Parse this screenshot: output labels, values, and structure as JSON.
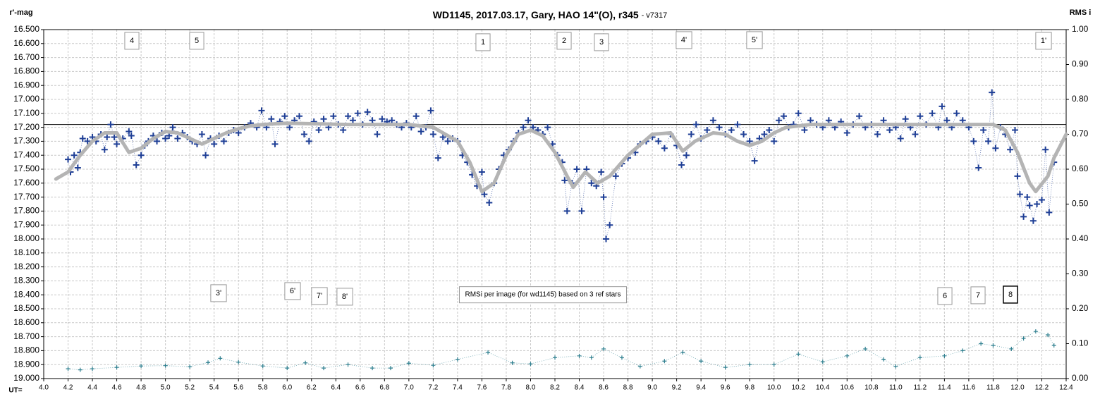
{
  "chart_data": {
    "type": "scatter",
    "title": "WD1145, 2017.03.17,  Gary, HAO 14\"(O), r345",
    "subtitle": "- v7317",
    "ylabel": "r'-mag",
    "y2label": "RMS i",
    "xlabel": "UT=",
    "xlim": [
      4.0,
      12.4
    ],
    "ylim": [
      19.0,
      16.5
    ],
    "y2lim": [
      0.0,
      1.0
    ],
    "grid": true,
    "reference_line": 17.18,
    "xticks": [
      {
        "value": 4.0,
        "label": "4.0"
      },
      {
        "value": 4.2,
        "label": "4.2"
      },
      {
        "value": 4.4,
        "label": "4.4"
      },
      {
        "value": 4.6,
        "label": "4.6"
      },
      {
        "value": 4.8,
        "label": "4.8"
      },
      {
        "value": 5.0,
        "label": "5.0"
      },
      {
        "value": 5.2,
        "label": "5.2"
      },
      {
        "value": 5.4,
        "label": "5.4"
      },
      {
        "value": 5.6,
        "label": "5.6"
      },
      {
        "value": 5.8,
        "label": "5.8"
      },
      {
        "value": 6.0,
        "label": "6.0"
      },
      {
        "value": 6.2,
        "label": "6.2"
      },
      {
        "value": 6.4,
        "label": "6.4"
      },
      {
        "value": 6.6,
        "label": "6.6"
      },
      {
        "value": 6.8,
        "label": "6.8"
      },
      {
        "value": 7.0,
        "label": "7.0"
      },
      {
        "value": 7.2,
        "label": "7.2"
      },
      {
        "value": 7.4,
        "label": "7.4"
      },
      {
        "value": 7.6,
        "label": "7.6"
      },
      {
        "value": 7.8,
        "label": "7.8"
      },
      {
        "value": 8.0,
        "label": "8.0"
      },
      {
        "value": 8.2,
        "label": "8.2"
      },
      {
        "value": 8.4,
        "label": "8.4"
      },
      {
        "value": 8.6,
        "label": "8.6"
      },
      {
        "value": 8.8,
        "label": "8.8"
      },
      {
        "value": 9.0,
        "label": "9.0"
      },
      {
        "value": 9.2,
        "label": "9.2"
      },
      {
        "value": 9.4,
        "label": "9.4"
      },
      {
        "value": 9.6,
        "label": "9.6"
      },
      {
        "value": 9.8,
        "label": "9.8"
      },
      {
        "value": 10.0,
        "label": "10.0"
      },
      {
        "value": 10.2,
        "label": "10.2"
      },
      {
        "value": 10.4,
        "label": "10.4"
      },
      {
        "value": 10.6,
        "label": "10.6"
      },
      {
        "value": 10.8,
        "label": "10.8"
      },
      {
        "value": 11.0,
        "label": "11.0"
      },
      {
        "value": 11.2,
        "label": "11.2"
      },
      {
        "value": 11.4,
        "label": "11.4"
      },
      {
        "value": 11.6,
        "label": "11.6"
      },
      {
        "value": 11.8,
        "label": "11.8"
      },
      {
        "value": 12.0,
        "label": "12.0"
      },
      {
        "value": 12.2,
        "label": "12.2"
      },
      {
        "value": 12.4,
        "label": "12.4"
      }
    ],
    "yticks": [
      {
        "value": 16.5,
        "label": "16.500"
      },
      {
        "value": 16.6,
        "label": "16.600"
      },
      {
        "value": 16.7,
        "label": "16.700"
      },
      {
        "value": 16.8,
        "label": "16.800"
      },
      {
        "value": 16.9,
        "label": "16.900"
      },
      {
        "value": 17.0,
        "label": "17.000"
      },
      {
        "value": 17.1,
        "label": "17.100"
      },
      {
        "value": 17.2,
        "label": "17.200"
      },
      {
        "value": 17.3,
        "label": "17.300"
      },
      {
        "value": 17.4,
        "label": "17.400"
      },
      {
        "value": 17.5,
        "label": "17.500"
      },
      {
        "value": 17.6,
        "label": "17.600"
      },
      {
        "value": 17.7,
        "label": "17.700"
      },
      {
        "value": 17.8,
        "label": "17.800"
      },
      {
        "value": 17.9,
        "label": "17.900"
      },
      {
        "value": 18.0,
        "label": "18.000"
      },
      {
        "value": 18.1,
        "label": "18.100"
      },
      {
        "value": 18.2,
        "label": "18.200"
      },
      {
        "value": 18.3,
        "label": "18.300"
      },
      {
        "value": 18.4,
        "label": "18.400"
      },
      {
        "value": 18.5,
        "label": "18.500"
      },
      {
        "value": 18.6,
        "label": "18.600"
      },
      {
        "value": 18.7,
        "label": "18.700"
      },
      {
        "value": 18.8,
        "label": "18.800"
      },
      {
        "value": 18.9,
        "label": "18.900"
      },
      {
        "value": 19.0,
        "label": "19.000"
      }
    ],
    "y2ticks": [
      {
        "value": 1.0,
        "label": "1.00"
      },
      {
        "value": 0.9,
        "label": "0.90"
      },
      {
        "value": 0.8,
        "label": "0.80"
      },
      {
        "value": 0.7,
        "label": "0.70"
      },
      {
        "value": 0.6,
        "label": "0.60"
      },
      {
        "value": 0.5,
        "label": "0.50"
      },
      {
        "value": 0.4,
        "label": "0.40"
      },
      {
        "value": 0.3,
        "label": "0.30"
      },
      {
        "value": 0.2,
        "label": "0.20"
      },
      {
        "value": 0.1,
        "label": "0.10"
      },
      {
        "value": 0.0,
        "label": "0.00"
      }
    ],
    "series": [
      {
        "color": "#1f3f96",
        "marker": "plus",
        "x": [
          4.2,
          4.22,
          4.25,
          4.28,
          4.3,
          4.32,
          4.36,
          4.4,
          4.43,
          4.47,
          4.5,
          4.52,
          4.55,
          4.58,
          4.6,
          4.65,
          4.7,
          4.72,
          4.76,
          4.8,
          4.83,
          4.86,
          4.9,
          4.93,
          4.97,
          5.0,
          5.03,
          5.06,
          5.1,
          5.14,
          5.18,
          5.22,
          5.26,
          5.3,
          5.33,
          5.37,
          5.4,
          5.44,
          5.48,
          5.52,
          5.56,
          5.6,
          5.65,
          5.7,
          5.75,
          5.79,
          5.83,
          5.87,
          5.9,
          5.94,
          5.98,
          6.02,
          6.06,
          6.1,
          6.14,
          6.18,
          6.22,
          6.26,
          6.3,
          6.34,
          6.38,
          6.42,
          6.46,
          6.5,
          6.54,
          6.58,
          6.62,
          6.66,
          6.7,
          6.74,
          6.78,
          6.82,
          6.86,
          6.9,
          6.94,
          6.98,
          7.02,
          7.06,
          7.1,
          7.14,
          7.18,
          7.2,
          7.24,
          7.28,
          7.32,
          7.36,
          7.4,
          7.44,
          7.48,
          7.52,
          7.56,
          7.6,
          7.62,
          7.66,
          7.7,
          7.74,
          7.78,
          7.82,
          7.86,
          7.9,
          7.94,
          7.98,
          8.02,
          8.06,
          8.1,
          8.14,
          8.18,
          8.22,
          8.26,
          8.28,
          8.3,
          8.34,
          8.38,
          8.42,
          8.46,
          8.5,
          8.54,
          8.58,
          8.6,
          8.62,
          8.65,
          8.7,
          8.75,
          8.8,
          8.86,
          8.9,
          8.95,
          9.0,
          9.05,
          9.1,
          9.15,
          9.2,
          9.24,
          9.28,
          9.32,
          9.36,
          9.4,
          9.45,
          9.5,
          9.55,
          9.6,
          9.65,
          9.7,
          9.75,
          9.8,
          9.84,
          9.88,
          9.92,
          9.96,
          10.0,
          10.04,
          10.08,
          10.12,
          10.16,
          10.2,
          10.25,
          10.3,
          10.35,
          10.4,
          10.45,
          10.5,
          10.55,
          10.6,
          10.65,
          10.7,
          10.75,
          10.8,
          10.85,
          10.9,
          10.95,
          11.0,
          11.04,
          11.08,
          11.12,
          11.16,
          11.2,
          11.25,
          11.3,
          11.35,
          11.38,
          11.42,
          11.46,
          11.5,
          11.55,
          11.6,
          11.64,
          11.68,
          11.72,
          11.76,
          11.79,
          11.82,
          11.86,
          11.9,
          11.94,
          11.98,
          12.0,
          12.02,
          12.05,
          12.08,
          12.1,
          12.13,
          12.16,
          12.2,
          12.23,
          12.26,
          12.3
        ],
        "values": [
          17.43,
          17.52,
          17.4,
          17.49,
          17.38,
          17.28,
          17.3,
          17.27,
          17.3,
          17.25,
          17.36,
          17.27,
          17.18,
          17.27,
          17.32,
          17.28,
          17.23,
          17.26,
          17.47,
          17.4,
          17.33,
          17.3,
          17.26,
          17.3,
          17.24,
          17.28,
          17.26,
          17.2,
          17.28,
          17.24,
          17.27,
          17.3,
          17.32,
          17.25,
          17.4,
          17.28,
          17.32,
          17.26,
          17.3,
          17.24,
          17.22,
          17.24,
          17.2,
          17.17,
          17.2,
          17.08,
          17.2,
          17.14,
          17.32,
          17.16,
          17.12,
          17.2,
          17.15,
          17.12,
          17.25,
          17.3,
          17.16,
          17.22,
          17.14,
          17.2,
          17.12,
          17.18,
          17.22,
          17.12,
          17.15,
          17.1,
          17.18,
          17.09,
          17.15,
          17.25,
          17.14,
          17.16,
          17.15,
          17.18,
          17.2,
          17.17,
          17.2,
          17.12,
          17.23,
          17.2,
          17.08,
          17.25,
          17.42,
          17.27,
          17.3,
          17.28,
          17.3,
          17.4,
          17.45,
          17.54,
          17.62,
          17.52,
          17.68,
          17.74,
          17.6,
          17.5,
          17.4,
          17.36,
          17.3,
          17.24,
          17.2,
          17.15,
          17.2,
          17.22,
          17.25,
          17.2,
          17.32,
          17.4,
          17.45,
          17.58,
          17.8,
          17.6,
          17.5,
          17.8,
          17.5,
          17.6,
          17.62,
          17.52,
          17.7,
          18.0,
          17.9,
          17.55,
          17.46,
          17.42,
          17.38,
          17.32,
          17.3,
          17.27,
          17.3,
          17.35,
          17.25,
          17.33,
          17.47,
          17.4,
          17.25,
          17.18,
          17.28,
          17.22,
          17.15,
          17.2,
          17.25,
          17.22,
          17.18,
          17.25,
          17.3,
          17.44,
          17.28,
          17.25,
          17.22,
          17.3,
          17.15,
          17.12,
          17.2,
          17.18,
          17.1,
          17.22,
          17.15,
          17.18,
          17.2,
          17.15,
          17.2,
          17.16,
          17.24,
          17.18,
          17.12,
          17.2,
          17.18,
          17.25,
          17.15,
          17.22,
          17.2,
          17.28,
          17.14,
          17.2,
          17.25,
          17.12,
          17.18,
          17.1,
          17.2,
          17.05,
          17.15,
          17.2,
          17.1,
          17.15,
          17.2,
          17.3,
          17.49,
          17.22,
          17.3,
          16.95,
          17.35,
          17.2,
          17.25,
          17.36,
          17.22,
          17.55,
          17.68,
          17.84,
          17.7,
          17.76,
          17.87,
          17.75,
          17.72,
          17.36,
          17.81,
          17.45
        ]
      },
      {
        "color": "#b4b4b4",
        "marker": "smooth",
        "x": [
          4.1,
          4.2,
          4.3,
          4.4,
          4.5,
          4.6,
          4.7,
          4.8,
          4.9,
          5.0,
          5.1,
          5.2,
          5.3,
          5.4,
          5.5,
          5.6,
          5.7,
          5.8,
          6.0,
          6.5,
          7.0,
          7.2,
          7.3,
          7.4,
          7.5,
          7.6,
          7.7,
          7.8,
          7.9,
          8.0,
          8.1,
          8.2,
          8.3,
          8.35,
          8.45,
          8.55,
          8.65,
          8.8,
          9.0,
          9.15,
          9.25,
          9.35,
          9.5,
          9.6,
          9.7,
          9.8,
          9.9,
          10.0,
          10.1,
          10.3,
          11.0,
          11.8,
          11.9,
          12.0,
          12.1,
          12.15,
          12.25,
          12.3,
          12.4
        ],
        "values": [
          17.57,
          17.52,
          17.4,
          17.3,
          17.24,
          17.24,
          17.38,
          17.35,
          17.28,
          17.23,
          17.24,
          17.28,
          17.32,
          17.28,
          17.24,
          17.21,
          17.19,
          17.18,
          17.17,
          17.18,
          17.18,
          17.2,
          17.25,
          17.3,
          17.45,
          17.66,
          17.6,
          17.4,
          17.25,
          17.22,
          17.26,
          17.38,
          17.55,
          17.63,
          17.52,
          17.6,
          17.55,
          17.4,
          17.25,
          17.24,
          17.37,
          17.3,
          17.24,
          17.25,
          17.3,
          17.33,
          17.3,
          17.24,
          17.2,
          17.18,
          17.18,
          17.18,
          17.22,
          17.38,
          17.6,
          17.66,
          17.55,
          17.42,
          17.25
        ]
      },
      {
        "color": "#2e7f8f",
        "marker": "plus",
        "axis": "y2",
        "x": [
          4.2,
          4.3,
          4.4,
          4.6,
          4.8,
          5.0,
          5.2,
          5.35,
          5.45,
          5.6,
          5.8,
          6.0,
          6.15,
          6.3,
          6.5,
          6.7,
          6.85,
          7.0,
          7.2,
          7.4,
          7.65,
          7.85,
          8.0,
          8.2,
          8.4,
          8.5,
          8.6,
          8.75,
          8.9,
          9.1,
          9.25,
          9.4,
          9.6,
          9.8,
          10.0,
          10.2,
          10.4,
          10.6,
          10.75,
          10.9,
          11.0,
          11.2,
          11.4,
          11.55,
          11.7,
          11.8,
          11.95,
          12.05,
          12.15,
          12.25,
          12.3
        ],
        "values": [
          0.028,
          0.025,
          0.028,
          0.032,
          0.036,
          0.037,
          0.034,
          0.046,
          0.058,
          0.047,
          0.036,
          0.03,
          0.045,
          0.03,
          0.04,
          0.03,
          0.03,
          0.044,
          0.038,
          0.055,
          0.075,
          0.045,
          0.042,
          0.06,
          0.065,
          0.06,
          0.085,
          0.06,
          0.035,
          0.05,
          0.075,
          0.05,
          0.032,
          0.04,
          0.04,
          0.07,
          0.048,
          0.065,
          0.085,
          0.055,
          0.035,
          0.06,
          0.065,
          0.08,
          0.1,
          0.095,
          0.085,
          0.115,
          0.135,
          0.125,
          0.095
        ]
      }
    ],
    "annotations": [
      "4",
      "5",
      "1",
      "2",
      "3",
      "4'",
      "5'",
      "1'",
      "3'",
      "6'",
      "7'",
      "8'",
      "6",
      "7",
      "8",
      "RMSi per image (for wd1145) based on 3 ref stars"
    ]
  }
}
